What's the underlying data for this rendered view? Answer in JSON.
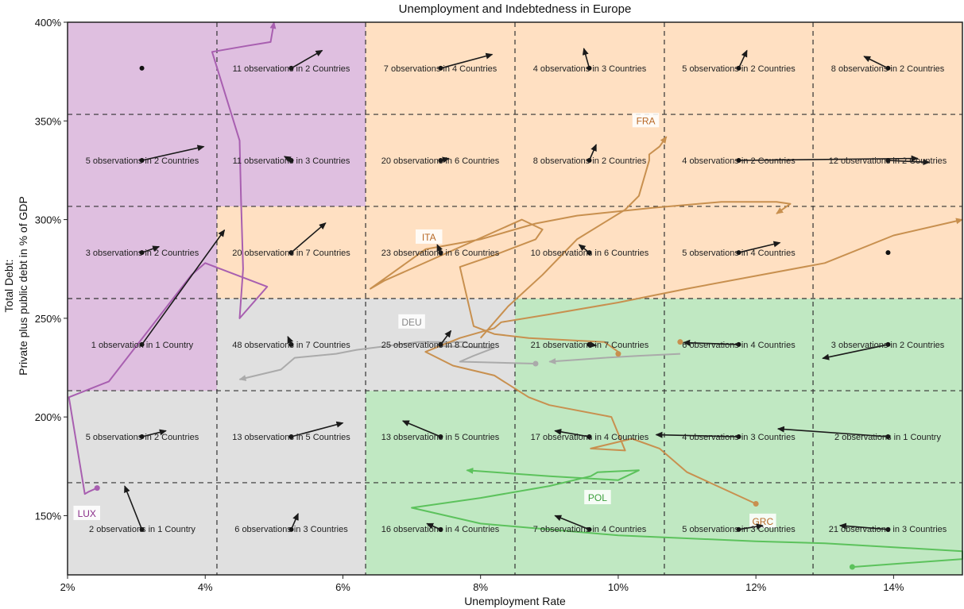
{
  "chart_data": {
    "type": "line",
    "title": "Unemployment and Indebtedness in Europe",
    "xlabel": "Unemployment Rate",
    "ylabel_line1": "Total Debt:",
    "ylabel_line2": "Private plus public debt in % of GDP",
    "xlim": [
      2,
      15
    ],
    "ylim": [
      120,
      400
    ],
    "x_ticks": [
      2,
      4,
      6,
      8,
      10,
      12,
      14
    ],
    "x_tick_labels": [
      "2%",
      "4%",
      "6%",
      "8%",
      "10%",
      "12%",
      "14%"
    ],
    "y_ticks": [
      150,
      200,
      250,
      300,
      350,
      400
    ],
    "y_tick_labels": [
      "150%",
      "200%",
      "250%",
      "300%",
      "350%",
      "400%"
    ],
    "grid": "dashed",
    "x_bin_edges": [
      2,
      4.17,
      6.33,
      8.5,
      10.67,
      12.83,
      15
    ],
    "y_bin_edges": [
      120,
      166.7,
      213.3,
      260,
      306.7,
      353.3,
      400
    ],
    "cell_colors": {
      "purple": "#dfbfe0",
      "orange": "#ffe0c2",
      "gray": "#e0e0e0",
      "green": "#c0e8c2"
    },
    "cell_fill_by_row_from_bottom": [
      [
        "gray",
        "gray",
        "green",
        "green",
        "green",
        "green"
      ],
      [
        "gray",
        "gray",
        "green",
        "green",
        "green",
        "green"
      ],
      [
        "purple",
        "gray",
        "gray",
        "green",
        "green",
        "green"
      ],
      [
        "purple",
        "orange",
        "orange",
        "orange",
        "orange",
        "orange"
      ],
      [
        "purple",
        "purple",
        "orange",
        "orange",
        "orange",
        "orange"
      ],
      [
        "purple",
        "purple",
        "orange",
        "orange",
        "orange",
        "orange"
      ]
    ],
    "cells": [
      {
        "row": 0,
        "col": 0,
        "label": "2 observations in 1 Country",
        "x": 3.08,
        "y": 143,
        "dx": -0.25,
        "dy": 22
      },
      {
        "row": 0,
        "col": 1,
        "label": "6 observations in 3 Countries",
        "x": 5.25,
        "y": 143,
        "dx": 0.1,
        "dy": 8
      },
      {
        "row": 0,
        "col": 2,
        "label": "16 observations in 4 Countries",
        "x": 7.42,
        "y": 143,
        "dx": -0.2,
        "dy": 3
      },
      {
        "row": 0,
        "col": 3,
        "label": "7 observations in 4 Countries",
        "x": 9.58,
        "y": 143,
        "dx": -0.5,
        "dy": 7
      },
      {
        "row": 0,
        "col": 4,
        "label": "5 observations in 3 Countries",
        "x": 11.75,
        "y": 143,
        "dx": 0.35,
        "dy": 2
      },
      {
        "row": 0,
        "col": 5,
        "label": "21 observations in 3 Countries",
        "x": 13.92,
        "y": 143,
        "dx": -0.7,
        "dy": 2
      },
      {
        "row": 1,
        "col": 0,
        "label": "5 observations in 2 Countries",
        "x": 3.08,
        "y": 190,
        "dx": 0.35,
        "dy": 3
      },
      {
        "row": 1,
        "col": 1,
        "label": "13 observations in 5 Countries",
        "x": 5.25,
        "y": 190,
        "dx": 0.75,
        "dy": 7
      },
      {
        "row": 1,
        "col": 2,
        "label": "13 observations in 5 Countries",
        "x": 7.42,
        "y": 190,
        "dx": -0.55,
        "dy": 8
      },
      {
        "row": 1,
        "col": 3,
        "label": "17 observations in 4 Countries",
        "x": 9.58,
        "y": 190,
        "dx": -0.5,
        "dy": 3
      },
      {
        "row": 1,
        "col": 4,
        "label": "4 observations in 3 Countries",
        "x": 11.75,
        "y": 190,
        "dx": -1.2,
        "dy": 1
      },
      {
        "row": 1,
        "col": 5,
        "label": "2 observations in 1 Country",
        "x": 13.92,
        "y": 190,
        "dx": -1.6,
        "dy": 4
      },
      {
        "row": 2,
        "col": 0,
        "label": "1 observation in 1 Country",
        "x": 3.08,
        "y": 236.7,
        "dx": 1.2,
        "dy": 58
      },
      {
        "row": 2,
        "col": 1,
        "label": "48 observations in 7 Countries",
        "x": 5.25,
        "y": 236.7,
        "dx": -0.05,
        "dy": 4
      },
      {
        "row": 2,
        "col": 2,
        "label": "25 observations in 8 Countries",
        "x": 7.42,
        "y": 236.7,
        "dx": 0.15,
        "dy": 7
      },
      {
        "row": 2,
        "col": 3,
        "label": "21 observations in 7 Countries",
        "x": 9.58,
        "y": 236.7,
        "dx": 0.1,
        "dy": -0.5
      },
      {
        "row": 2,
        "col": 4,
        "label": "6 observations in 4 Countries",
        "x": 11.75,
        "y": 236.7,
        "dx": -0.8,
        "dy": 1
      },
      {
        "row": 2,
        "col": 5,
        "label": "3 observations in 2 Countries",
        "x": 13.92,
        "y": 236.7,
        "dx": -0.95,
        "dy": -7
      },
      {
        "row": 3,
        "col": 0,
        "label": "3 observations in 2 Countries",
        "x": 3.08,
        "y": 283.3,
        "dx": 0.25,
        "dy": 3
      },
      {
        "row": 3,
        "col": 1,
        "label": "20 observations in 7 Countries",
        "x": 5.25,
        "y": 283.3,
        "dx": 0.5,
        "dy": 15
      },
      {
        "row": 3,
        "col": 2,
        "label": "23 observations in 6 Countries",
        "x": 7.42,
        "y": 283.3,
        "dx": -0.05,
        "dy": 4
      },
      {
        "row": 3,
        "col": 3,
        "label": "10 observations in 6 Countries",
        "x": 9.58,
        "y": 283.3,
        "dx": -0.15,
        "dy": 4
      },
      {
        "row": 3,
        "col": 4,
        "label": "5 observations in 4 Countries",
        "x": 11.75,
        "y": 283.3,
        "dx": 0.6,
        "dy": 5
      },
      {
        "row": 3,
        "col": 5,
        "label": "",
        "x": 13.92,
        "y": 283.3,
        "dx": 0,
        "dy": 0
      },
      {
        "row": 4,
        "col": 0,
        "label": "5 observations in 2 Countries",
        "x": 3.08,
        "y": 330,
        "dx": 0.9,
        "dy": 7
      },
      {
        "row": 4,
        "col": 1,
        "label": "11 observations in 3 Countries",
        "x": 5.25,
        "y": 330,
        "dx": -0.1,
        "dy": 2
      },
      {
        "row": 4,
        "col": 2,
        "label": "20 observations in 6 Countries",
        "x": 7.42,
        "y": 330,
        "dx": 0.12,
        "dy": 1
      },
      {
        "row": 4,
        "col": 3,
        "label": "8 observations in 2 Countries",
        "x": 9.58,
        "y": 330,
        "dx": 0.1,
        "dy": 8
      },
      {
        "row": 4,
        "col": 4,
        "label": "4 observations in 2 Countries",
        "x": 11.75,
        "y": 330,
        "dx": 2.6,
        "dy": 1
      },
      {
        "row": 4,
        "col": 5,
        "label": "12 observations in 2 Countries",
        "x": 13.92,
        "y": 330,
        "dx": 0.6,
        "dy": -1
      },
      {
        "row": 5,
        "col": 0,
        "label": "",
        "x": 3.08,
        "y": 376.7,
        "dx": 0,
        "dy": 0
      },
      {
        "row": 5,
        "col": 1,
        "label": "11 observations in 2 Countries",
        "x": 5.25,
        "y": 376.7,
        "dx": 0.45,
        "dy": 9
      },
      {
        "row": 5,
        "col": 2,
        "label": "7 observations in 4 Countries",
        "x": 7.42,
        "y": 376.7,
        "dx": 0.75,
        "dy": 7
      },
      {
        "row": 5,
        "col": 3,
        "label": "4 observations in 3 Countries",
        "x": 9.58,
        "y": 376.7,
        "dx": -0.08,
        "dy": 10
      },
      {
        "row": 5,
        "col": 4,
        "label": "5 observations in 2 Countries",
        "x": 11.75,
        "y": 376.7,
        "dx": 0.12,
        "dy": 9
      },
      {
        "row": 5,
        "col": 5,
        "label": "8 observations in 2 Countries",
        "x": 13.92,
        "y": 376.7,
        "dx": -0.35,
        "dy": 6
      }
    ],
    "series": [
      {
        "name": "LUX",
        "color": "#a85fb0",
        "label_color": "#8a2e8a",
        "label_x": 2.28,
        "label_y": 151,
        "x": [
          2.43,
          2.3,
          2.25,
          2.02,
          2.6,
          3.2,
          3.8,
          4.0,
          4.9,
          4.5,
          4.55,
          4.52,
          4.5,
          4.1,
          4.6,
          4.95,
          5.0
        ],
        "y": [
          164,
          162,
          161,
          210,
          218,
          245,
          272,
          278,
          266,
          250,
          275,
          310,
          340,
          385,
          388,
          390,
          400
        ]
      },
      {
        "name": "DEU",
        "color": "#aaaaaa",
        "label_color": "#888888",
        "label_x": 7.0,
        "label_y": 248,
        "x": [
          8.8,
          7.7,
          7.9,
          8.2,
          7.35,
          7.4,
          7.6,
          7.8,
          7.1,
          6.2,
          5.9,
          5.3,
          5.1,
          4.5
        ],
        "y": [
          227,
          228,
          231,
          235,
          236,
          237,
          238,
          238,
          238,
          234,
          232,
          230,
          224,
          219
        ]
      },
      {
        "name": "FRA",
        "color": "#c8904f",
        "label_color": "#b86a28",
        "label_x": 10.4,
        "label_y": 350,
        "x": [
          8.0,
          8.4,
          8.9,
          9.4,
          10.1,
          10.3,
          10.3,
          10.45,
          10.45,
          10.6,
          10.7
        ],
        "y": [
          240,
          256,
          272,
          290,
          305,
          312,
          312,
          330,
          333,
          337,
          342
        ]
      },
      {
        "name": "ITA",
        "color": "#c8904f",
        "label_color": "#b86a28",
        "label_x": 7.25,
        "label_y": 291,
        "x": [
          10.0,
          9.8,
          8.7,
          8.2,
          7.9,
          7.7,
          8.2,
          8.8,
          8.9,
          8.6,
          6.6,
          6.4,
          7.2,
          8.0,
          8.8,
          9.4,
          10.5,
          11.5,
          12.3,
          12.5,
          12.3
        ],
        "y": [
          233,
          238,
          240,
          242,
          246,
          276,
          282,
          290,
          295,
          300,
          269,
          265,
          285,
          290,
          298,
          302,
          306,
          309,
          309,
          308,
          303
        ]
      },
      {
        "name": "GRC",
        "color": "#c8904f",
        "label_color": "#b86a28",
        "label_x": 12.1,
        "label_y": 147,
        "x": [
          12.0,
          11.0,
          10.6,
          10.2,
          9.6,
          10.1,
          9.9,
          9.0,
          8.7,
          8.2,
          7.6,
          7.2,
          7.7,
          8.2,
          8.3,
          9.0,
          10.0,
          11.0,
          13.0,
          14.0,
          15.0
        ],
        "y": [
          156,
          172,
          184,
          189,
          184,
          183,
          200,
          206,
          210,
          221,
          226,
          233,
          240,
          245,
          248,
          252,
          258,
          265,
          278,
          292,
          300
        ]
      },
      {
        "name": "POL",
        "color": "#5cc25c",
        "label_color": "#3a9e3a",
        "label_x": 9.7,
        "label_y": 159,
        "x": [
          13.4,
          15.0,
          15.0,
          14.0,
          13.0,
          12.0,
          10.0,
          8.0,
          7.0,
          8.0,
          9.0,
          9.6,
          9.7,
          10.3,
          10.0,
          9.0,
          7.8
        ],
        "y": [
          124,
          128,
          132,
          134,
          136,
          137,
          140,
          146,
          154,
          159,
          165,
          170,
          172,
          173,
          168,
          170,
          173
        ]
      },
      {
        "name": "",
        "color": "#aaaaaa",
        "label_color": "#888888",
        "label_x": 0,
        "label_y": 0,
        "x": [
          10.9,
          10.3,
          9.8,
          9.4,
          9.0
        ],
        "y": [
          232,
          231,
          230,
          229,
          228
        ]
      }
    ],
    "series_end_markers": [
      {
        "x": 2.43,
        "y": 164,
        "color": "#a85fb0"
      },
      {
        "x": 8.8,
        "y": 227,
        "color": "#aaaaaa"
      },
      {
        "x": 10.0,
        "y": 232,
        "color": "#c8904f"
      },
      {
        "x": 10.9,
        "y": 238,
        "color": "#c8904f"
      },
      {
        "x": 12.0,
        "y": 156,
        "color": "#c8904f"
      },
      {
        "x": 13.4,
        "y": 124,
        "color": "#5cc25c"
      }
    ]
  }
}
